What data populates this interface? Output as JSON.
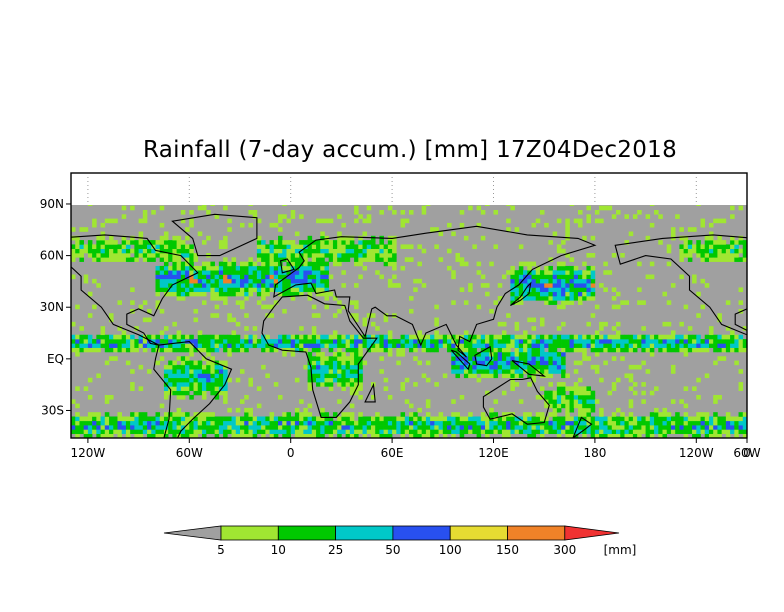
{
  "chart_data": {
    "type": "heatmap",
    "title": "Rainfall (7-day accum.) [mm] 17Z04Dec2018",
    "x_tick_labels": [
      "120W",
      "60W",
      "0",
      "60E",
      "120E",
      "180",
      "120W",
      "60W",
      "0"
    ],
    "y_tick_labels": [
      "90N",
      "60N",
      "30N",
      "EQ",
      "30S"
    ],
    "x_range_lon": [
      -130,
      270
    ],
    "y_range_lat": [
      -46,
      108
    ],
    "data_extent_lat": [
      -46,
      90
    ],
    "grid": "dotted meridians above the data, top band only",
    "colorbar": {
      "unit_label": "[mm]",
      "boundaries": [
        "5",
        "10",
        "25",
        "50",
        "100",
        "150",
        "300"
      ],
      "colors": [
        "#a0a0a0",
        "#a0e632",
        "#00c800",
        "#00c8c8",
        "#2850f0",
        "#e6dc32",
        "#f08228",
        "#f03232"
      ]
    },
    "land_color": "#a0a0a0"
  }
}
